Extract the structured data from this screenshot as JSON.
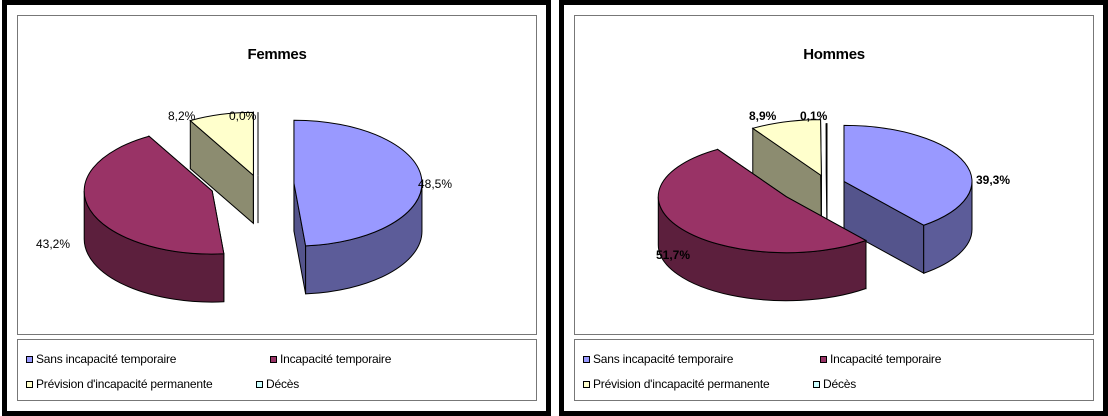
{
  "colors": {
    "sans": "#9999ff",
    "incap": "#993366",
    "prevision": "#ffffcc",
    "deces": "#ccffff"
  },
  "legend": [
    {
      "label": "Sans incapacité temporaire",
      "color": "#9999ff"
    },
    {
      "label": "Incapacité temporaire",
      "color": "#993366"
    },
    {
      "label": "Prévision d'incapacité permanente",
      "color": "#ffffcc"
    },
    {
      "label": "Décès",
      "color": "#ccffff"
    }
  ],
  "chart_data": [
    {
      "type": "pie",
      "title": "Femmes",
      "categories": [
        "Sans incapacité temporaire",
        "Incapacité temporaire",
        "Prévision d'incapacité permanente",
        "Décès"
      ],
      "values": [
        48.5,
        43.2,
        8.2,
        0.0
      ],
      "labels": [
        "48,5%",
        "43,2%",
        "8,2%",
        "0,0%"
      ],
      "legend_position": "bottom",
      "exploded": true,
      "three_d": true
    },
    {
      "type": "pie",
      "title": "Hommes",
      "categories": [
        "Sans incapacité temporaire",
        "Incapacité temporaire",
        "Prévision d'incapacité permanente",
        "Décès"
      ],
      "values": [
        39.3,
        51.7,
        8.9,
        0.1
      ],
      "labels": [
        "39,3%",
        "51,7%",
        "8,9%",
        "0,1%"
      ],
      "legend_position": "bottom",
      "exploded": true,
      "three_d": true
    }
  ]
}
